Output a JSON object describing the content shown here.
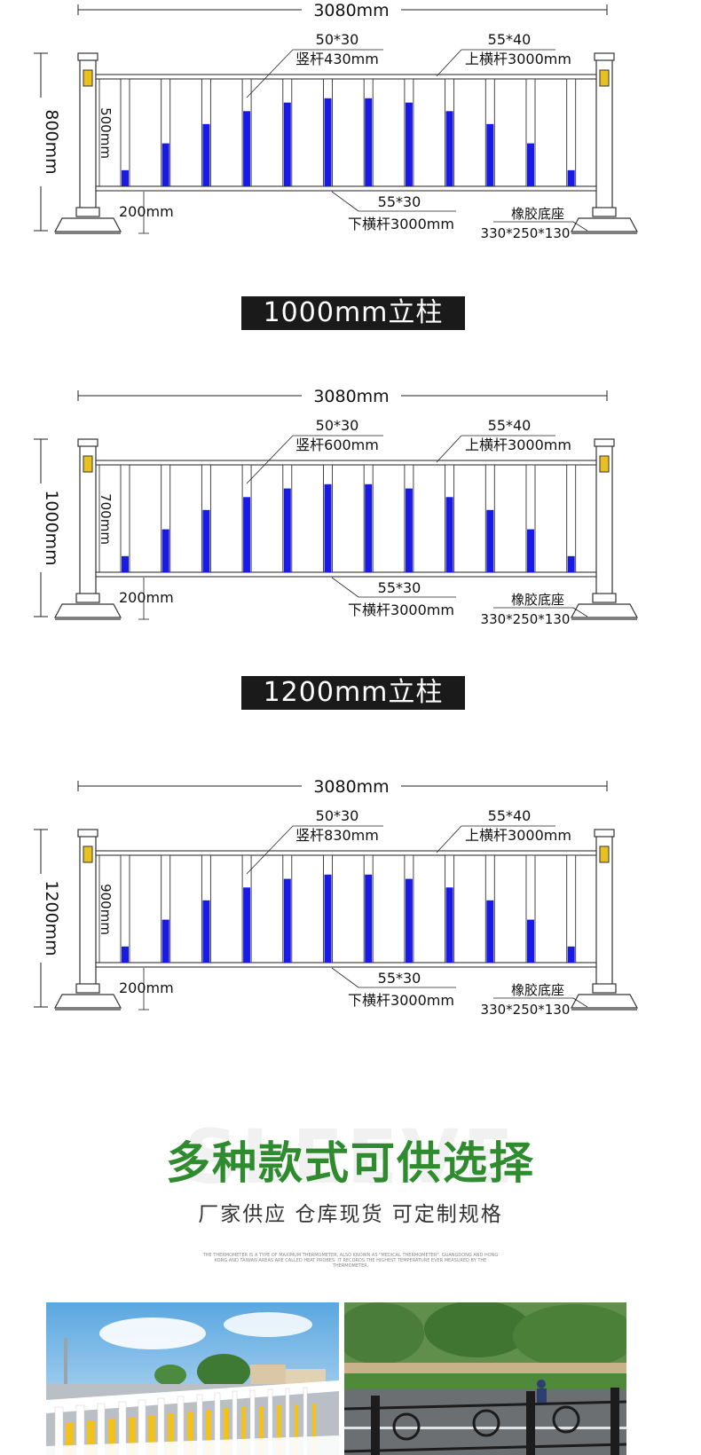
{
  "diagrams": [
    {
      "title": "",
      "total_width": "3080mm",
      "height_label": "800mm",
      "bar_height": "500mm",
      "vertical_bar_size": "50*30",
      "vertical_bar_length": "竖杆430mm",
      "top_rail_size": "55*40",
      "top_rail_length": "上横杆3000mm",
      "bottom_rail_size": "55*30",
      "bottom_rail_length": "下横杆3000mm",
      "ground_gap": "200mm",
      "base_name": "橡胶底座",
      "base_size": "330*250*130",
      "bar_fill_ratios": [
        0.15,
        0.4,
        0.58,
        0.7,
        0.78,
        0.82,
        0.82,
        0.78,
        0.7,
        0.58,
        0.4,
        0.15
      ]
    },
    {
      "title": "1000mm立柱",
      "total_width": "3080mm",
      "height_label": "1000mm",
      "bar_height": "700mm",
      "vertical_bar_size": "50*30",
      "vertical_bar_length": "竖杆600mm",
      "top_rail_size": "55*40",
      "top_rail_length": "上横杆3000mm",
      "bottom_rail_size": "55*30",
      "bottom_rail_length": "下横杆3000mm",
      "ground_gap": "200mm",
      "base_name": "橡胶底座",
      "base_size": "330*250*130",
      "bar_fill_ratios": [
        0.15,
        0.4,
        0.58,
        0.7,
        0.78,
        0.82,
        0.82,
        0.78,
        0.7,
        0.58,
        0.4,
        0.15
      ]
    },
    {
      "title": "1200mm立柱",
      "total_width": "3080mm",
      "height_label": "1200mm",
      "bar_height": "900mm",
      "vertical_bar_size": "50*30",
      "vertical_bar_length": "竖杆830mm",
      "top_rail_size": "55*40",
      "top_rail_length": "上横杆3000mm",
      "bottom_rail_size": "55*30",
      "bottom_rail_length": "下横杆3000mm",
      "ground_gap": "200mm",
      "base_name": "橡胶底座",
      "base_size": "330*250*130",
      "bar_fill_ratios": [
        0.15,
        0.4,
        0.58,
        0.7,
        0.78,
        0.82,
        0.82,
        0.78,
        0.7,
        0.58,
        0.4,
        0.15
      ]
    }
  ],
  "colors": {
    "bar_blue": "#1a1ae6",
    "banner_bg": "#1a1a1a",
    "headline_green": "#2e8b2e",
    "post_lamp": "#e8c020"
  },
  "styles_section": {
    "watermark": "SLEEVE",
    "headline": "多种款式可供选择",
    "subline": "厂家供应 仓库现货 可定制规格",
    "fine_print": "THE THERMOMETER IS A TYPE OF MAXIMUM THERMOMETER, ALSO KNOWN AS \"MEDICAL THERMOMETER\". GUANGDONG AND HONG KONG AND TAIWAN AREAS ARE CALLED HEAT PROBES. IT RECORDS THE HIGHEST TEMPERATURE EVER MEASURED BY THE THERMOMETER."
  },
  "photos": [
    {
      "name": "white-yellow-railing-photo"
    },
    {
      "name": "black-decorative-railing-photo"
    }
  ]
}
